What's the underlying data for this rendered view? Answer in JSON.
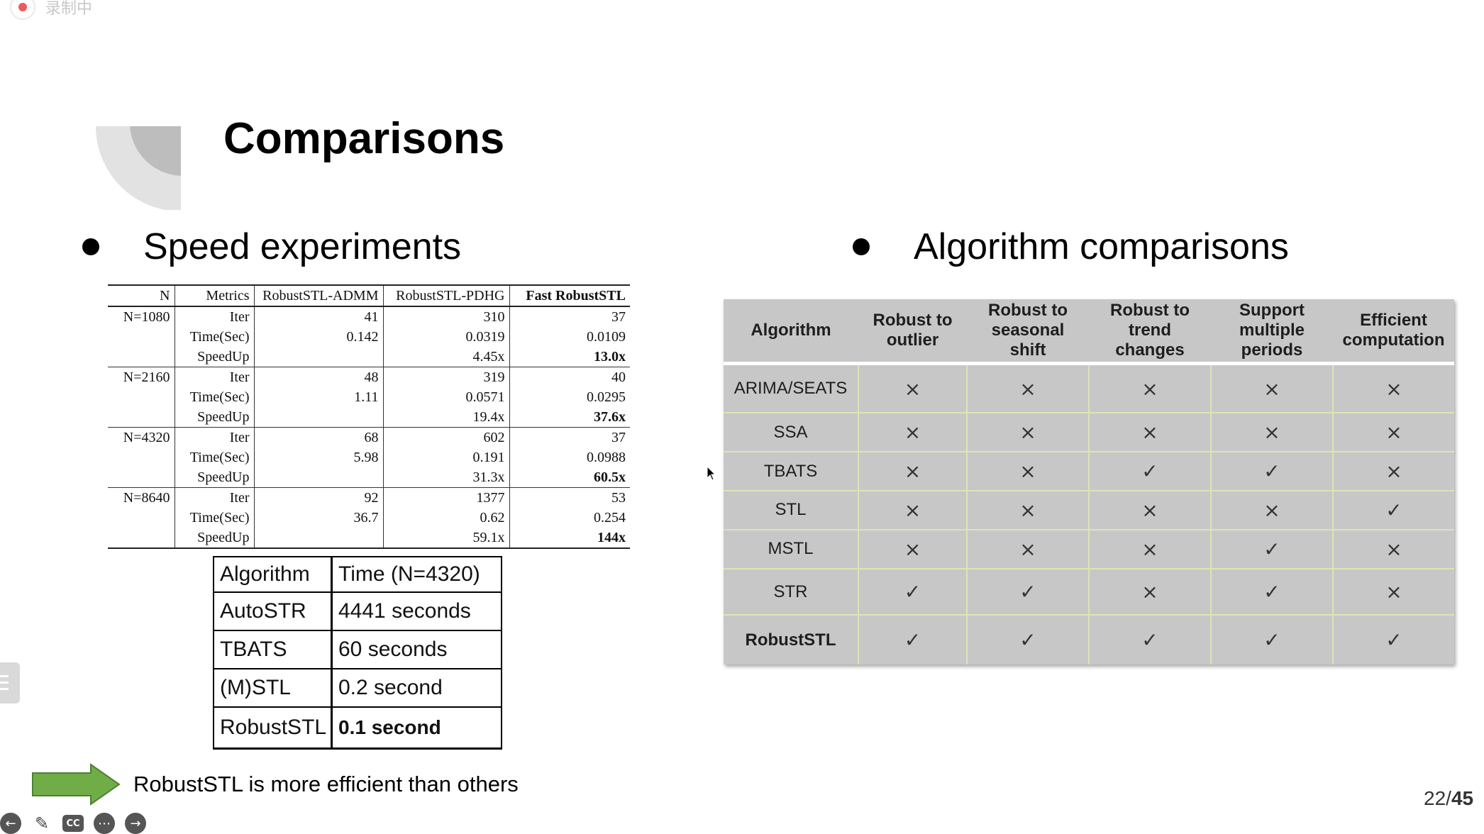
{
  "recording": {
    "label": "录制中"
  },
  "slide": {
    "title": "Comparisons",
    "left_heading": "Speed experiments",
    "right_heading": "Algorithm comparisons",
    "page_current": "22",
    "page_total": "45",
    "conclusion": "RobustSTL is more efficient than others"
  },
  "speed_table": {
    "headers": [
      "N",
      "Metrics",
      "RobustSTL-ADMM",
      "RobustSTL-PDHG",
      "Fast RobustSTL"
    ],
    "groups": [
      {
        "n": "N=1080",
        "rows": [
          {
            "metric": "Iter",
            "admm": "41",
            "pdhg": "310",
            "fast": "37"
          },
          {
            "metric": "Time(Sec)",
            "admm": "0.142",
            "pdhg": "0.0319",
            "fast": "0.0109"
          },
          {
            "metric": "SpeedUp",
            "admm": "",
            "pdhg": "4.45x",
            "fast": "13.0x"
          }
        ]
      },
      {
        "n": "N=2160",
        "rows": [
          {
            "metric": "Iter",
            "admm": "48",
            "pdhg": "319",
            "fast": "40"
          },
          {
            "metric": "Time(Sec)",
            "admm": "1.11",
            "pdhg": "0.0571",
            "fast": "0.0295"
          },
          {
            "metric": "SpeedUp",
            "admm": "",
            "pdhg": "19.4x",
            "fast": "37.6x"
          }
        ]
      },
      {
        "n": "N=4320",
        "rows": [
          {
            "metric": "Iter",
            "admm": "68",
            "pdhg": "602",
            "fast": "37"
          },
          {
            "metric": "Time(Sec)",
            "admm": "5.98",
            "pdhg": "0.191",
            "fast": "0.0988"
          },
          {
            "metric": "SpeedUp",
            "admm": "",
            "pdhg": "31.3x",
            "fast": "60.5x"
          }
        ]
      },
      {
        "n": "N=8640",
        "rows": [
          {
            "metric": "Iter",
            "admm": "92",
            "pdhg": "1377",
            "fast": "53"
          },
          {
            "metric": "Time(Sec)",
            "admm": "36.7",
            "pdhg": "0.62",
            "fast": "0.254"
          },
          {
            "metric": "SpeedUp",
            "admm": "",
            "pdhg": "59.1x",
            "fast": "144x"
          }
        ]
      }
    ]
  },
  "time_table": {
    "headers": [
      "Algorithm",
      "Time (N=4320)"
    ],
    "rows": [
      [
        "AutoSTR",
        "4441 seconds"
      ],
      [
        "TBATS",
        "60 seconds"
      ],
      [
        "(M)STL",
        "0.2 second"
      ],
      [
        "RobustSTL",
        "0.1 second"
      ]
    ]
  },
  "algo_table": {
    "headers": [
      "Algorithm",
      "Robust to outlier",
      "Robust to seasonal shift",
      "Robust to trend changes",
      "Support multiple periods",
      "Efficient computation"
    ],
    "rows": [
      {
        "name": "ARIMA/SEATS",
        "marks": [
          "×",
          "×",
          "×",
          "×",
          "×"
        ]
      },
      {
        "name": "SSA",
        "marks": [
          "×",
          "×",
          "×",
          "×",
          "×"
        ]
      },
      {
        "name": "TBATS",
        "marks": [
          "×",
          "×",
          "✓",
          "✓",
          "×"
        ]
      },
      {
        "name": "STL",
        "marks": [
          "×",
          "×",
          "×",
          "×",
          "✓"
        ]
      },
      {
        "name": "MSTL",
        "marks": [
          "×",
          "×",
          "×",
          "✓",
          "×"
        ]
      },
      {
        "name": "STR",
        "marks": [
          "✓",
          "✓",
          "×",
          "✓",
          "×"
        ]
      },
      {
        "name": "RobustSTL",
        "marks": [
          "✓",
          "✓",
          "✓",
          "✓",
          "✓"
        ]
      }
    ]
  },
  "colors": {
    "arrow_fill": "#70ad47",
    "arrow_stroke": "#4e7f32",
    "table_bg": "#c7c7c7",
    "grid_line": "#dfe4b4"
  },
  "toolbar": {
    "icons": [
      "back-icon",
      "pen-icon",
      "captions-icon",
      "more-icon",
      "forward-icon"
    ],
    "cc_label": "CC"
  }
}
